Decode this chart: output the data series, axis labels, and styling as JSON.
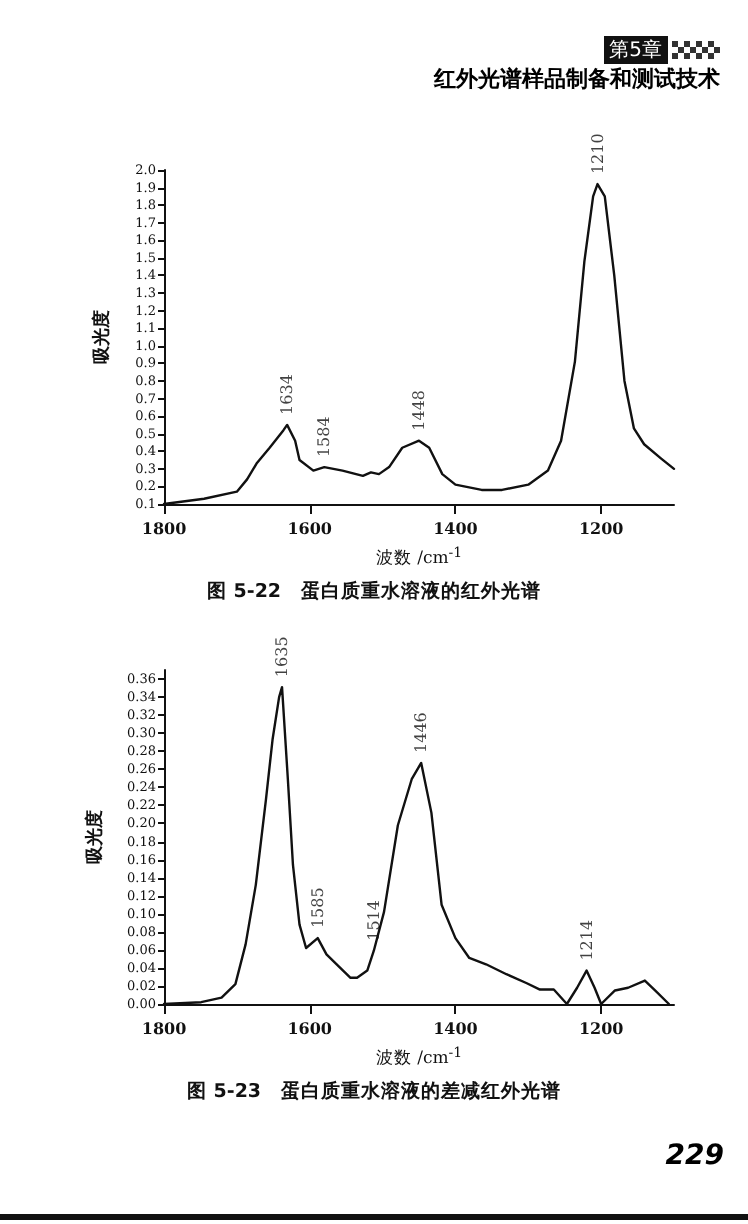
{
  "chart_data": [
    {
      "type": "line",
      "title": "图 5-22　蛋白质重水溶液的红外光谱",
      "xlabel": "波数 /cm$^{-1}$",
      "ylabel": "吸光度",
      "x": [
        1800,
        1745,
        1700,
        1686,
        1673,
        1655,
        1636,
        1631,
        1620,
        1614,
        1595,
        1580,
        1555,
        1527,
        1516,
        1505,
        1491,
        1473,
        1450,
        1436,
        1418,
        1400,
        1364,
        1336,
        1300,
        1273,
        1255,
        1236,
        1223,
        1211,
        1205,
        1195,
        1182,
        1168,
        1155,
        1141,
        1118,
        1100
      ],
      "series": [
        {
          "color": "#111111",
          "values": [
            0.1,
            0.13,
            0.17,
            0.24,
            0.33,
            0.42,
            0.52,
            0.55,
            0.46,
            0.35,
            0.29,
            0.31,
            0.29,
            0.26,
            0.28,
            0.27,
            0.31,
            0.42,
            0.46,
            0.42,
            0.27,
            0.21,
            0.18,
            0.18,
            0.21,
            0.29,
            0.46,
            0.91,
            1.48,
            1.85,
            1.92,
            1.85,
            1.4,
            0.8,
            0.53,
            0.44,
            0.36,
            0.3
          ]
        }
      ],
      "xlim": [
        1800,
        1100
      ],
      "xticks": [
        1800,
        1600,
        1400,
        1200
      ],
      "ylim": [
        0.1,
        2.0
      ],
      "yticks": [
        0.1,
        0.2,
        0.3,
        0.4,
        0.5,
        0.6,
        0.7,
        0.8,
        0.9,
        {
          "value": 1,
          "label": "1.0"
        },
        1.1,
        1.2,
        1.3,
        1.4,
        1.5,
        1.6,
        1.7,
        1.8,
        1.9,
        {
          "value": 2,
          "label": "2.0"
        }
      ],
      "annotations": [
        "第5章",
        "红外光谱样品制备和测试技术",
        {
          "text": "1634",
          "x": 1631,
          "y": 0.55
        },
        {
          "text": "1584",
          "x": 1580,
          "y": 0.31
        },
        {
          "text": "1448",
          "x": 1450,
          "y": 0.46
        },
        {
          "text": "1210",
          "x": 1205,
          "y": 1.92
        }
      ],
      "grid": false,
      "marker": "none",
      "line_style": "solid"
    },
    {
      "type": "line",
      "title": "图 5-23　蛋白质重水溶液的差减红外光谱",
      "xlabel": "波数 /cm$^{-1}$",
      "ylabel": "吸光度",
      "x": [
        1800,
        1749,
        1721,
        1702,
        1688,
        1674,
        1660,
        1651,
        1642,
        1638,
        1630,
        1623,
        1614,
        1605,
        1589,
        1577,
        1563,
        1544,
        1535,
        1521,
        1512,
        1498,
        1479,
        1460,
        1447,
        1433,
        1419,
        1400,
        1381,
        1358,
        1330,
        1302,
        1284,
        1265,
        1247,
        1233,
        1220,
        1209,
        1200,
        1181,
        1163,
        1140,
        1126,
        1107
      ],
      "series": [
        {
          "color": "#111111",
          "values": [
            0.0,
            0.002,
            0.007,
            0.022,
            0.066,
            0.132,
            0.227,
            0.293,
            0.34,
            0.351,
            0.249,
            0.154,
            0.088,
            0.062,
            0.073,
            0.055,
            0.044,
            0.029,
            0.029,
            0.037,
            0.059,
            0.102,
            0.198,
            0.249,
            0.267,
            0.212,
            0.11,
            0.073,
            0.051,
            0.044,
            0.033,
            0.023,
            0.016,
            0.016,
            0.0,
            0.018,
            0.037,
            0.018,
            0.0,
            0.015,
            0.018,
            0.026,
            0.015,
            0.0
          ]
        }
      ],
      "xlim": [
        1800,
        1100
      ],
      "xticks": [
        1800,
        1600,
        1400,
        1200
      ],
      "ylim": [
        0,
        0.37
      ],
      "yticks": [
        {
          "value": 0,
          "label": "0.00"
        },
        {
          "value": 0.02,
          "label": "0.02"
        },
        {
          "value": 0.04,
          "label": "0.04"
        },
        {
          "value": 0.06,
          "label": "0.06"
        },
        {
          "value": 0.08,
          "label": "0.08"
        },
        {
          "value": 0.1,
          "label": "0.10"
        },
        {
          "value": 0.12,
          "label": "0.12"
        },
        {
          "value": 0.14,
          "label": "0.14"
        },
        {
          "value": 0.16,
          "label": "0.16"
        },
        {
          "value": 0.18,
          "label": "0.18"
        },
        {
          "value": 0.2,
          "label": "0.20"
        },
        {
          "value": 0.22,
          "label": "0.22"
        },
        {
          "value": 0.24,
          "label": "0.24"
        },
        {
          "value": 0.26,
          "label": "0.26"
        },
        {
          "value": 0.28,
          "label": "0.28"
        },
        {
          "value": 0.3,
          "label": "0.30"
        },
        {
          "value": 0.32,
          "label": "0.32"
        },
        {
          "value": 0.34,
          "label": "0.34"
        },
        {
          "value": 0.36,
          "label": "0.36"
        }
      ],
      "annotations": [
        "229",
        {
          "text": "1635",
          "x": 1638,
          "y": 0.351
        },
        {
          "text": "1585",
          "x": 1589,
          "y": 0.073
        },
        {
          "text": "1514",
          "x": 1512,
          "y": 0.059
        },
        {
          "text": "1446",
          "x": 1447,
          "y": 0.267
        },
        {
          "text": "1214",
          "x": 1220,
          "y": 0.037
        }
      ],
      "grid": false,
      "marker": "none",
      "line_style": "solid"
    }
  ]
}
